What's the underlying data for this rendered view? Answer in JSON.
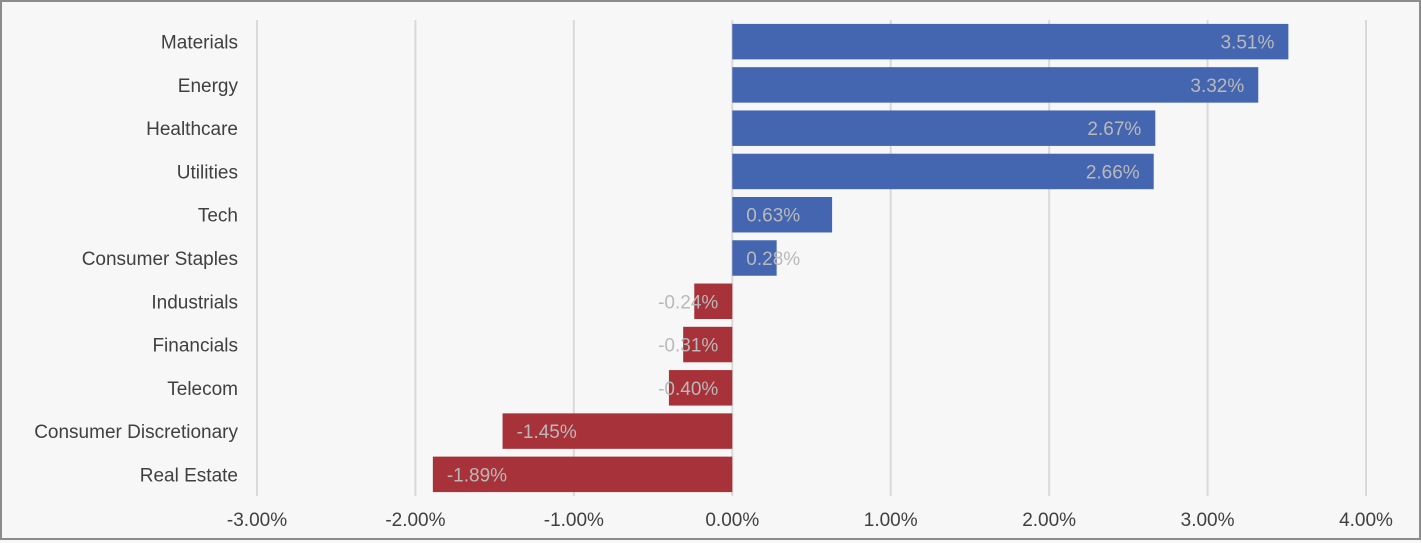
{
  "chart_data": {
    "type": "bar",
    "orientation": "horizontal",
    "categories": [
      "Materials",
      "Energy",
      "Healthcare",
      "Utilities",
      "Tech",
      "Consumer Staples",
      "Industrials",
      "Financials",
      "Telecom",
      "Consumer Discretionary",
      "Real Estate"
    ],
    "values": [
      3.51,
      3.32,
      2.67,
      2.66,
      0.63,
      0.28,
      -0.24,
      -0.31,
      -0.4,
      -1.45,
      -1.89
    ],
    "data_labels": [
      "3.51%",
      "3.32%",
      "2.67%",
      "2.66%",
      "0.63%",
      "0.28%",
      "-0.24%",
      "-0.31%",
      "-0.40%",
      "-1.45%",
      "-1.89%"
    ],
    "xlim": [
      -3,
      4
    ],
    "x_ticks": [
      -3,
      -2,
      -1,
      0,
      1,
      2,
      3,
      4
    ],
    "x_tick_labels": [
      "-3.00%",
      "-2.00%",
      "-1.00%",
      "0.00%",
      "1.00%",
      "2.00%",
      "3.00%",
      "4.00%"
    ],
    "grid": true,
    "colors": {
      "positive": "#4466b0",
      "negative": "#a83239"
    },
    "title": "",
    "xlabel": "",
    "ylabel": ""
  }
}
